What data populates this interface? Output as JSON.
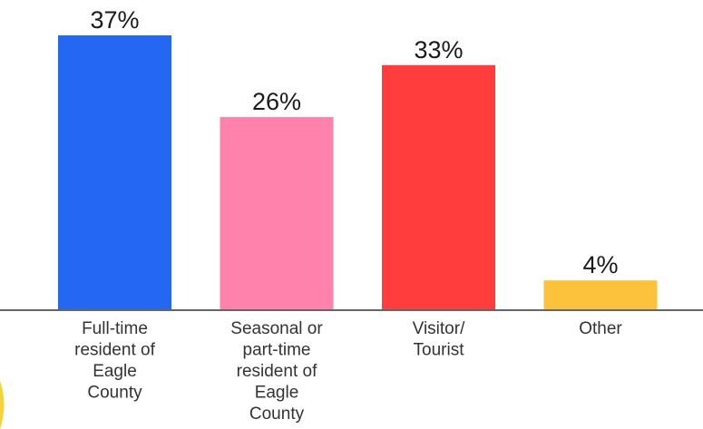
{
  "chart_data": {
    "type": "bar",
    "categories": [
      [
        "Full-time",
        "resident of",
        "Eagle",
        "County"
      ],
      [
        "Seasonal or",
        "part-time",
        "resident of",
        "Eagle",
        "County"
      ],
      [
        "Visitor/",
        "Tourist"
      ],
      [
        "Other"
      ]
    ],
    "values": [
      37,
      26,
      33,
      4
    ],
    "value_labels": [
      "37%",
      "26%",
      "33%",
      "4%"
    ],
    "colors": [
      "#2367F2",
      "#FF82AC",
      "#FF3D3D",
      "#FDC23C"
    ],
    "title": "",
    "xlabel": "",
    "ylabel": "",
    "ylim": [
      0,
      37
    ],
    "grid": false,
    "legend": "none"
  }
}
